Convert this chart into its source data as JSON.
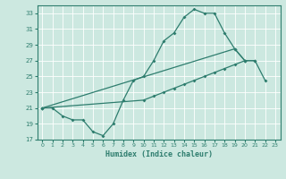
{
  "xlabel": "Humidex (Indice chaleur)",
  "xlim": [
    -0.5,
    23.5
  ],
  "ylim": [
    17,
    34
  ],
  "yticks": [
    17,
    19,
    21,
    23,
    25,
    27,
    29,
    31,
    33
  ],
  "xticks": [
    0,
    1,
    2,
    3,
    4,
    5,
    6,
    7,
    8,
    9,
    10,
    11,
    12,
    13,
    14,
    15,
    16,
    17,
    18,
    19,
    20,
    21,
    22,
    23
  ],
  "line_color": "#2e7d6e",
  "bg_color": "#cce8e0",
  "grid_color": "#ffffff",
  "s1x": [
    0,
    1,
    2,
    3,
    4,
    5,
    6,
    7,
    8,
    9,
    10,
    11,
    12,
    13,
    14,
    15,
    16,
    17,
    18,
    19,
    20,
    21
  ],
  "s1y": [
    21.0,
    21.0,
    20.0,
    19.5,
    19.5,
    18.0,
    17.5,
    19.0,
    22.0,
    24.5,
    25.0,
    27.0,
    29.5,
    30.5,
    32.5,
    33.5,
    33.0,
    33.0,
    30.5,
    28.5,
    27.0,
    27.0
  ],
  "s2x": [
    0,
    10,
    11,
    12,
    13,
    14,
    15,
    16,
    17,
    18,
    19,
    20
  ],
  "s2y": [
    21.0,
    22.0,
    22.5,
    23.0,
    23.5,
    24.0,
    24.5,
    25.0,
    25.5,
    26.0,
    26.5,
    27.0
  ],
  "s3x": [
    0,
    19,
    20,
    21,
    22
  ],
  "s3y": [
    21.0,
    28.5,
    27.0,
    27.0,
    24.5
  ]
}
